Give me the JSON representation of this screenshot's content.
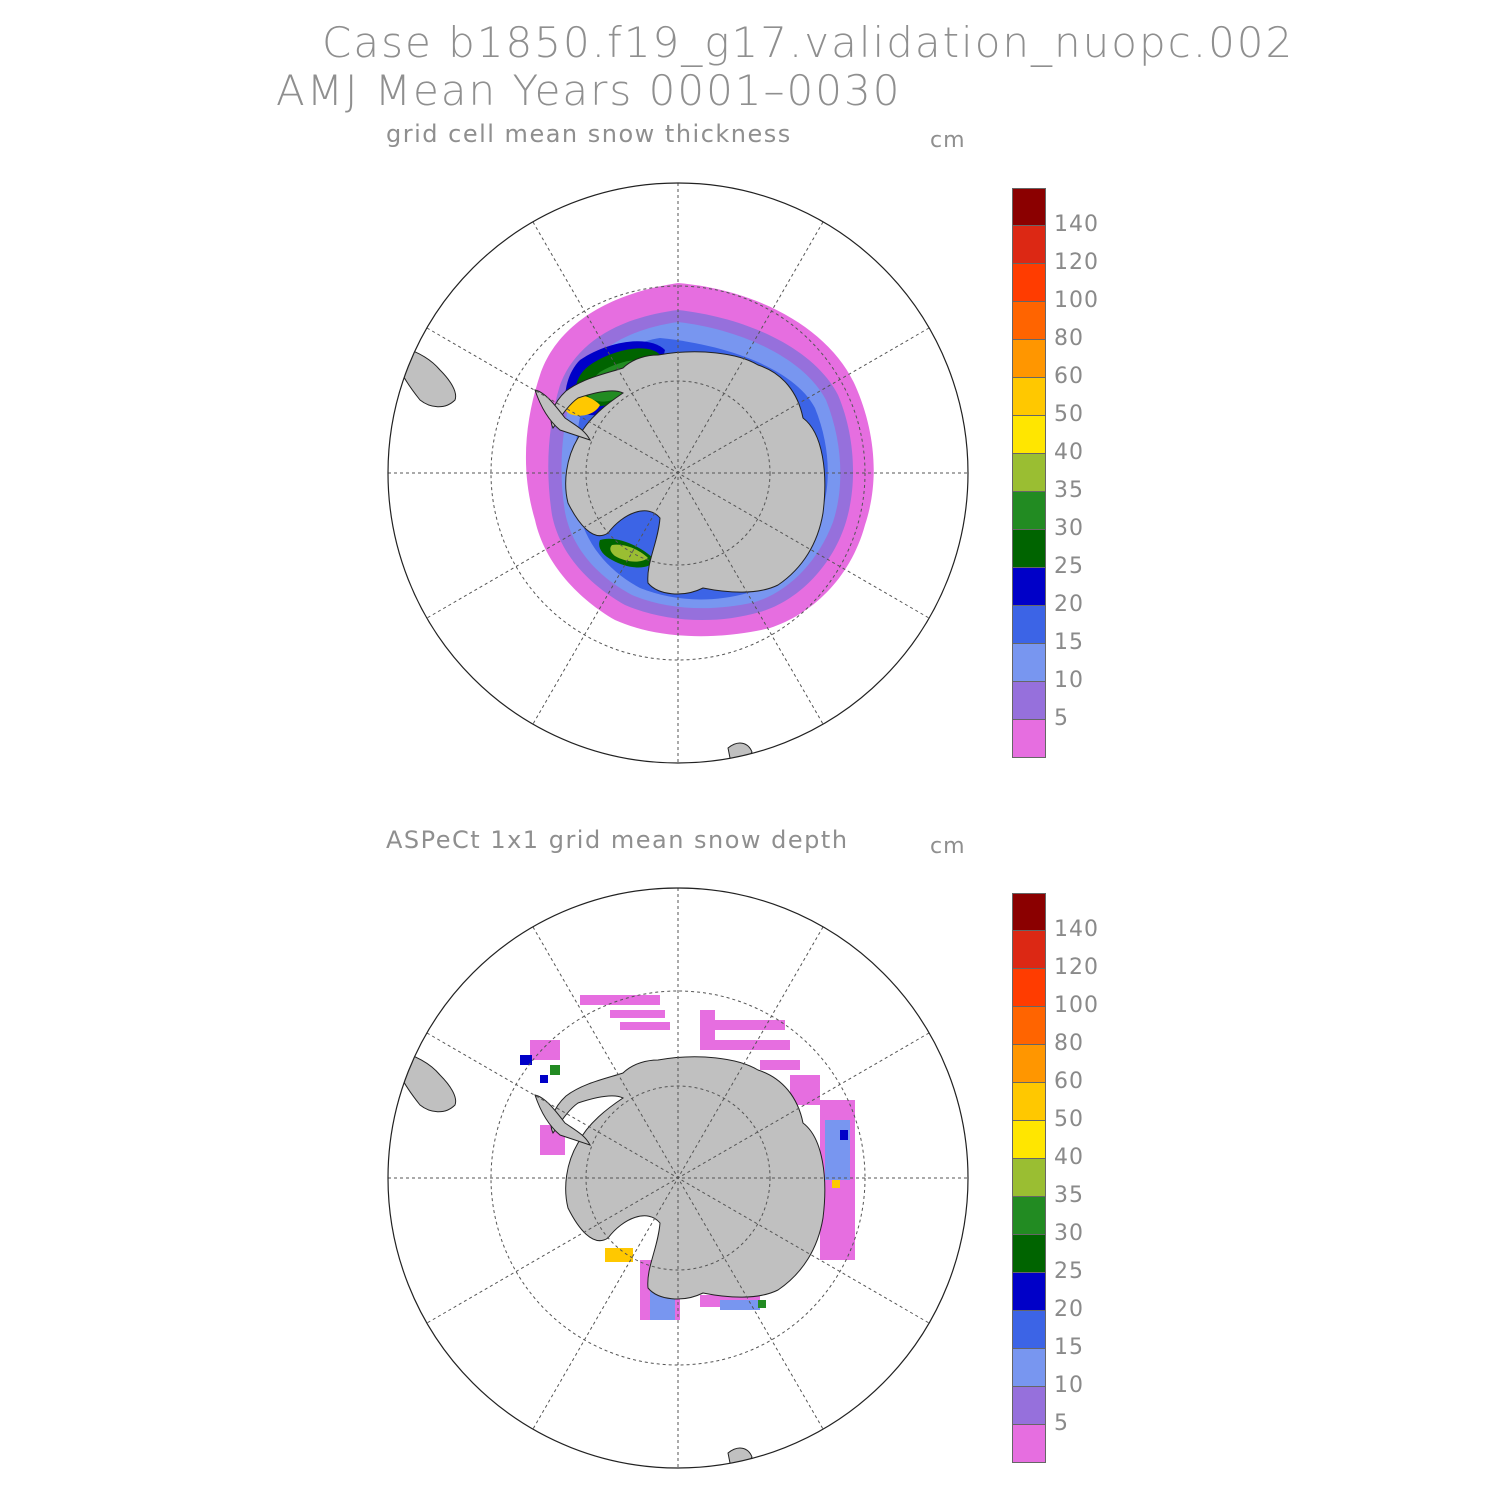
{
  "header": {
    "case_line": "Case b1850.f19_g17.validation_nuopc.002",
    "period_line": "AMJ Mean     Years 0001–0030"
  },
  "panels": [
    {
      "title": "grid cell mean snow thickness",
      "unit": "cm",
      "field": "model snow thickness (continuous field)"
    },
    {
      "title": "ASPeCt 1x1 grid mean snow depth",
      "unit": "cm",
      "field": "observed snow depth (ship-track cells)"
    }
  ],
  "colorbar": {
    "labels": [
      "140",
      "120",
      "100",
      "80",
      "60",
      "50",
      "40",
      "35",
      "30",
      "25",
      "20",
      "15",
      "10",
      "5"
    ],
    "colors": [
      "#8b0000",
      "#dc2814",
      "#ff3c00",
      "#ff6400",
      "#ff9600",
      "#ffc800",
      "#ffe600",
      "#9abe32",
      "#228b22",
      "#006400",
      "#0000c8",
      "#3c64e6",
      "#7896f0",
      "#9670dc",
      "#e66ee0"
    ]
  },
  "map_colors": {
    "land": "#c0c0c0",
    "grid": "#555555"
  }
}
